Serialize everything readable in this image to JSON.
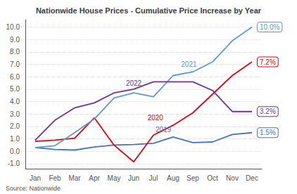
{
  "chart_data": {
    "type": "line",
    "title": "Nationwide House Prices - Cumulative Price Increase by Year",
    "categories": [
      "Jan",
      "Feb",
      "Mar",
      "Apr",
      "May",
      "Jun",
      "Jul",
      "Aug",
      "Sep",
      "Oct",
      "Nov",
      "Dec"
    ],
    "series": [
      {
        "name": "2019",
        "color": "#4472c4",
        "values": [
          0.3,
          0.15,
          0.1,
          0.35,
          0.5,
          0.55,
          0.65,
          1.15,
          0.7,
          0.75,
          1.35,
          1.5
        ],
        "value_labels": [
          null,
          null,
          null,
          null,
          null,
          null,
          null,
          null,
          null,
          null,
          null,
          "1.5%"
        ]
      },
      {
        "name": "2020",
        "color": "#e8000e",
        "values": [
          0.8,
          0.9,
          1.05,
          2.7,
          0.5,
          -0.85,
          1.3,
          2.1,
          3.1,
          4.6,
          6.1,
          7.2
        ],
        "value_labels": [
          null,
          null,
          null,
          null,
          null,
          null,
          null,
          null,
          null,
          null,
          null,
          "7.2%"
        ]
      },
      {
        "name": "2021",
        "color": "#5b9bd5",
        "values": [
          0.3,
          0.45,
          1.5,
          2.6,
          4.3,
          4.7,
          4.4,
          6.1,
          6.4,
          7.2,
          8.9,
          10.0
        ],
        "value_labels": [
          null,
          null,
          null,
          null,
          null,
          null,
          null,
          null,
          null,
          null,
          null,
          "10.0%"
        ]
      },
      {
        "name": "2022",
        "color": "#7030a0",
        "values": [
          0.9,
          2.5,
          3.5,
          3.9,
          4.7,
          5.0,
          5.6,
          5.6,
          5.6,
          4.9,
          3.2,
          3.2
        ],
        "value_labels": [
          null,
          null,
          null,
          null,
          null,
          null,
          null,
          null,
          null,
          null,
          null,
          "3.2%"
        ]
      }
    ],
    "annotations": [
      {
        "text": "2019",
        "x": 6.5,
        "y": 1.75,
        "color": "#4472c4"
      },
      {
        "text": "2020",
        "x": 6.1,
        "y": 2.7,
        "color": "#e8000e"
      },
      {
        "text": "2021",
        "x": 7.8,
        "y": 7.0,
        "color": "#5b9bd5"
      },
      {
        "text": "2022",
        "x": 5.0,
        "y": 5.45,
        "color": "#7030a0"
      },
      {
        "text": "Source: Nationwide"
      }
    ],
    "ylim": [
      -1.4,
      10.6
    ],
    "yticks": [
      {
        "value": -1,
        "label": "-1.0"
      },
      {
        "value": 0,
        "label": "0.0"
      },
      {
        "value": 1,
        "label": "1.0"
      },
      {
        "value": 2,
        "label": "2.0"
      },
      {
        "value": 3,
        "label": "3.0"
      },
      {
        "value": 4,
        "label": "4.0"
      },
      {
        "value": 5,
        "label": "5.0"
      },
      {
        "value": 6,
        "label": "6.0"
      },
      {
        "value": 7,
        "label": "7.0"
      },
      {
        "value": 8,
        "label": "8.0"
      },
      {
        "value": 9,
        "label": "9.0"
      },
      {
        "value": 10,
        "label": "10.0"
      }
    ],
    "grid": true
  }
}
